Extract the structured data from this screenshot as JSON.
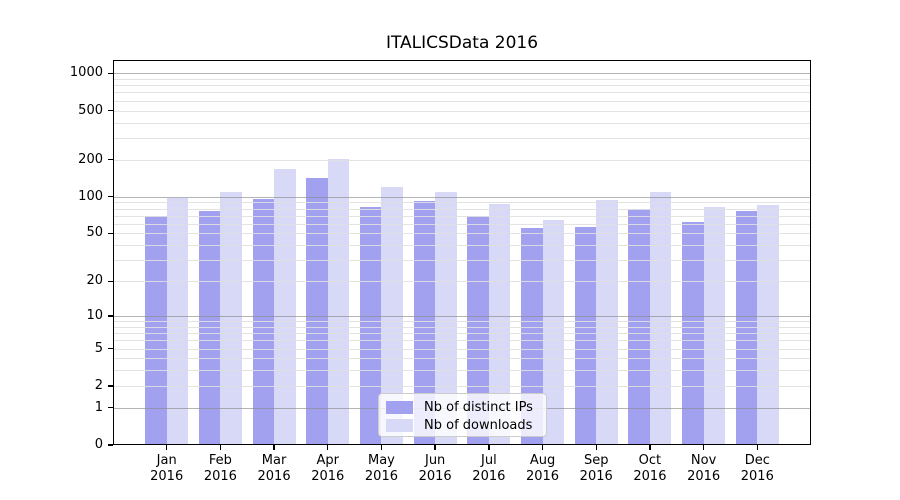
{
  "chart_data": {
    "type": "bar",
    "title": "ITALICSData 2016",
    "categories": [
      "Jan",
      "Feb",
      "Mar",
      "Apr",
      "May",
      "Jun",
      "Jul",
      "Aug",
      "Sep",
      "Oct",
      "Nov",
      "Dec"
    ],
    "x_tick_year": "2016",
    "series": [
      {
        "name": "Nb of distinct IPs",
        "color": "#a1a1f0",
        "values": [
          70,
          76,
          96,
          141,
          82,
          93,
          70,
          55,
          56,
          80,
          62,
          76
        ]
      },
      {
        "name": "Nb of downloads",
        "color": "#d8d8f7",
        "values": [
          97,
          109,
          167,
          203,
          119,
          109,
          87,
          64,
          94,
          110,
          83,
          86
        ]
      }
    ],
    "yscale": "log10(1+x)",
    "y_ticks": [
      0,
      1,
      2,
      5,
      10,
      20,
      50,
      100,
      200,
      500,
      1000
    ],
    "y_major_gridlines": [
      1,
      10,
      100,
      1000
    ],
    "ylim": [
      0,
      1280
    ],
    "xlabel": "",
    "ylabel": "",
    "grid": true,
    "grid_above_bars": true,
    "legend_position": "lower center",
    "colors": {
      "major_grid": "#b4b4b4",
      "minor_grid": "#e7e7e7",
      "spine": "#000000",
      "background": "#ffffff"
    }
  }
}
